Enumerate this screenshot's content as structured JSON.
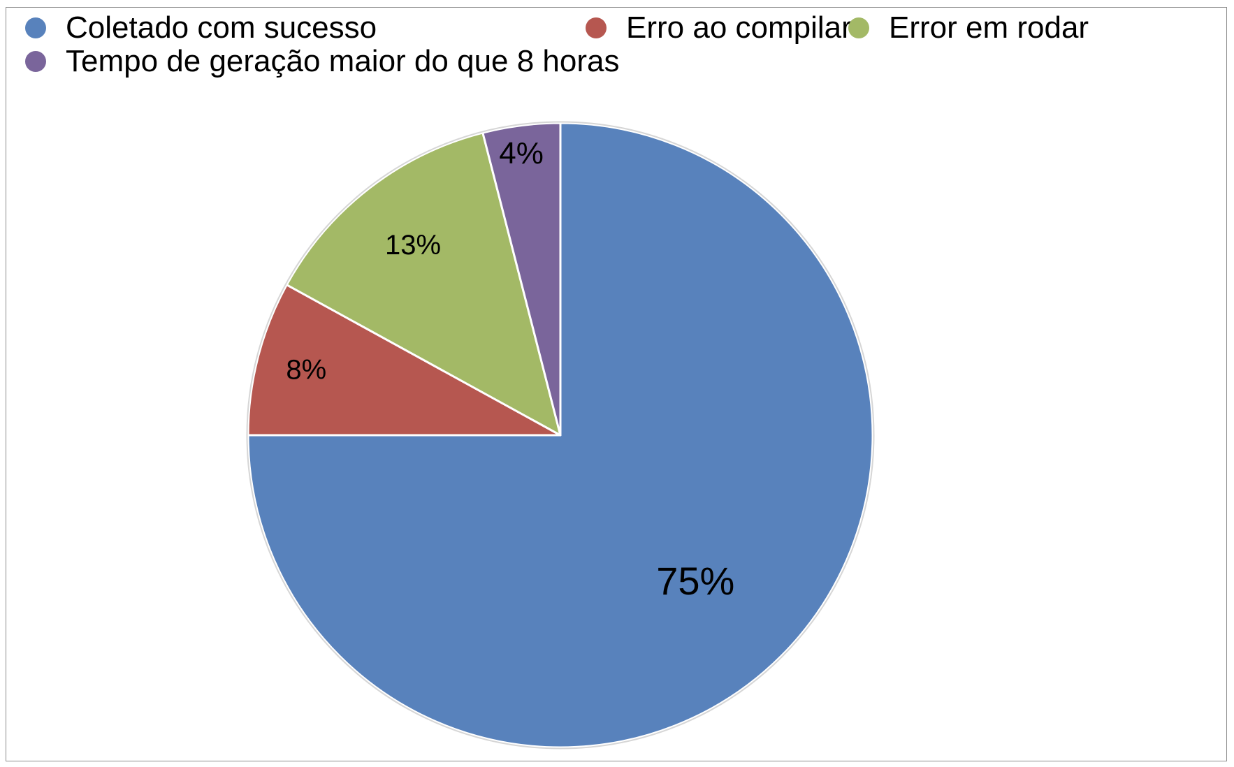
{
  "chart_data": {
    "type": "pie",
    "title": "",
    "series": [
      {
        "name": "",
        "slices": [
          {
            "label": "Coletado com sucesso",
            "value": 75,
            "display": "75%",
            "color": "#5882bc"
          },
          {
            "label": "Erro ao compilar",
            "value": 8,
            "display": "8%",
            "color": "#b65750"
          },
          {
            "label": "Error em rodar",
            "value": 13,
            "display": "13%",
            "color": "#a3b966"
          },
          {
            "label": "Tempo de geração maior do que 8 horas",
            "value": 4,
            "display": "4%",
            "color": "#7a659b"
          }
        ]
      }
    ],
    "legend": {
      "placement": "top",
      "entries": [
        "Coletado com sucesso",
        "Erro ao compilar",
        "Error em rodar",
        "Tempo de geração maior do que 8 horas"
      ]
    },
    "start_angle": "12 o'clock",
    "direction": "clockwise"
  }
}
